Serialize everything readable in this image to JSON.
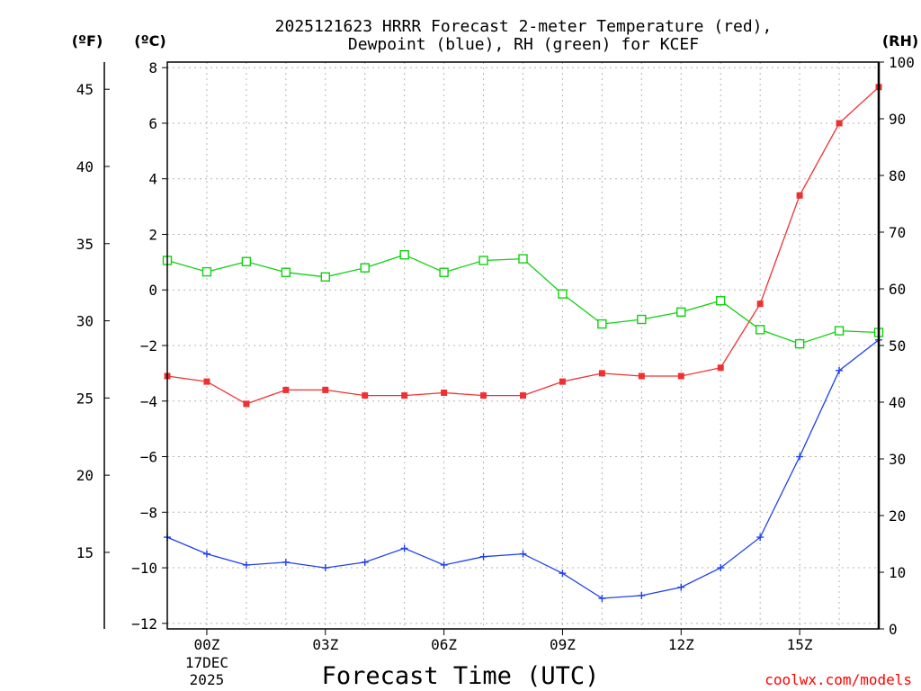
{
  "chart_data": {
    "type": "line",
    "title_lines": [
      "2025121623 HRRR Forecast 2-meter Temperature (red),",
      "Dewpoint (blue), RH (green) for KCEF"
    ],
    "xlabel": "Forecast Time (UTC)",
    "credit": "coolwx.com/models",
    "units": {
      "f": "(ºF)",
      "c": "(ºC)",
      "rh": "(RH)"
    },
    "x": [
      23,
      24,
      25,
      26,
      27,
      28,
      29,
      30,
      31,
      32,
      33,
      34,
      35,
      36,
      37,
      38,
      39,
      40,
      41
    ],
    "xlim": [
      23,
      41
    ],
    "x_ticks": [
      {
        "x": 24,
        "label": "00Z",
        "sub1": "17DEC",
        "sub2": "2025"
      },
      {
        "x": 27,
        "label": "03Z"
      },
      {
        "x": 30,
        "label": "06Z"
      },
      {
        "x": 33,
        "label": "09Z"
      },
      {
        "x": 36,
        "label": "12Z"
      },
      {
        "x": 39,
        "label": "15Z"
      }
    ],
    "c_axis": {
      "ylim": [
        -12.2,
        8.2
      ],
      "ticks": [
        8,
        6,
        4,
        2,
        0,
        -2,
        -4,
        -6,
        -8,
        -10,
        -12
      ],
      "labels": [
        "8",
        "6",
        "4",
        "2",
        "0",
        "−2",
        "−4",
        "−6",
        "−8",
        "−10",
        "−12"
      ]
    },
    "f_axis": {
      "ticks": [
        45,
        40,
        35,
        30,
        25,
        20,
        15
      ],
      "labels": [
        "45",
        "40",
        "35",
        "30",
        "25",
        "20",
        "15"
      ]
    },
    "rh_axis": {
      "ylim": [
        0,
        100
      ],
      "ticks": [
        100,
        90,
        80,
        70,
        60,
        50,
        40,
        30,
        20,
        10,
        0
      ],
      "labels": [
        "100",
        "90",
        "80",
        "70",
        "60",
        "50",
        "40",
        "30",
        "20",
        "10",
        "0"
      ]
    },
    "series": [
      {
        "name": "Temperature",
        "axis": "c",
        "color": "#f03030",
        "marker": "filled-square",
        "values": [
          -3.1,
          -3.3,
          -4.1,
          -3.6,
          -3.6,
          -3.8,
          -3.8,
          -3.7,
          -3.8,
          -3.8,
          -3.3,
          -3.0,
          -3.1,
          -3.1,
          -2.8,
          -0.5,
          3.4,
          6.0,
          7.3
        ]
      },
      {
        "name": "Dewpoint",
        "axis": "c",
        "color": "#2040f0",
        "marker": "plus",
        "values": [
          -8.9,
          -9.5,
          -9.9,
          -9.8,
          -10.0,
          -9.8,
          -9.3,
          -9.9,
          -9.6,
          -9.5,
          -10.2,
          -11.1,
          -11.0,
          -10.7,
          -10.0,
          -8.9,
          -6.0,
          -2.9,
          -1.8
        ]
      },
      {
        "name": "RH",
        "axis": "rh",
        "color": "#10d010",
        "marker": "open-square",
        "values": [
          65.0,
          63.0,
          64.8,
          62.9,
          62.1,
          63.7,
          66.0,
          62.9,
          65.0,
          65.3,
          59.1,
          53.8,
          54.6,
          55.9,
          57.9,
          52.8,
          50.3,
          52.6,
          52.3
        ]
      }
    ]
  }
}
